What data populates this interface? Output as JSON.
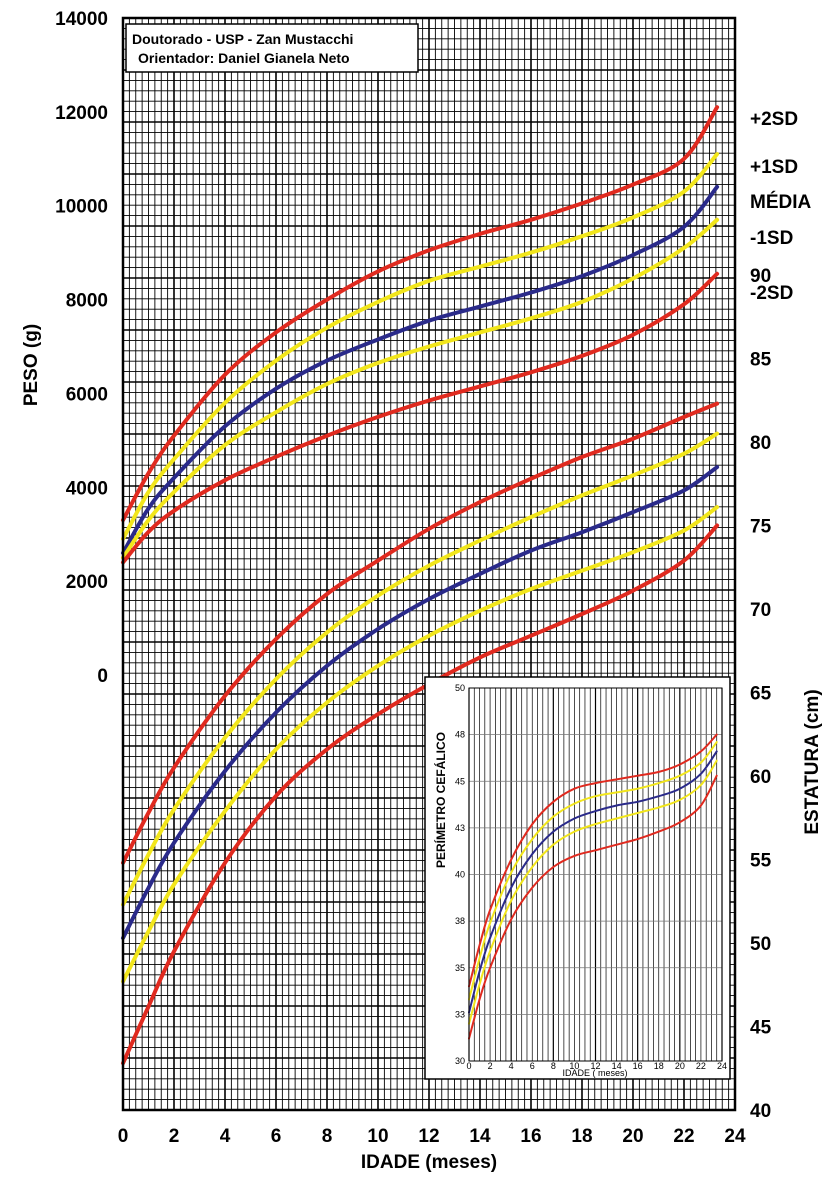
{
  "chart_data": [
    {
      "type": "line",
      "xlabel": "IDADE (meses)",
      "ylabel": "PESO (g)",
      "y2label": "ESTATURA (cm)",
      "credit_lines": [
        "Doutorado - USP - Zan Mustacchi",
        "Orientador: Daniel Gianela Neto"
      ],
      "xlim": [
        0,
        24
      ],
      "x_ticks": [
        0,
        2,
        4,
        6,
        8,
        10,
        12,
        14,
        16,
        18,
        20,
        22,
        24
      ],
      "y_ticks": [
        0,
        2000,
        4000,
        6000,
        8000,
        10000,
        12000,
        14000
      ],
      "ylim": [
        0,
        14000
      ],
      "y2_ticks": [
        40,
        45,
        50,
        55,
        60,
        65,
        70,
        75,
        80,
        85,
        90
      ],
      "y2lim": [
        40,
        100
      ],
      "grid": true,
      "colors": {
        "sd2": "#e02a1f",
        "sd1": "#f2e61b",
        "media": "#2a2a8a"
      },
      "x": [
        0,
        1,
        2,
        4,
        6,
        8,
        10,
        12,
        14,
        16,
        18,
        20,
        22,
        23.3
      ],
      "weight_series": [
        {
          "name": "+2SD",
          "color": "#e02a1f",
          "values": [
            3300,
            4300,
            5100,
            6400,
            7300,
            8000,
            8600,
            9050,
            9400,
            9700,
            10050,
            10450,
            11000,
            12100
          ]
        },
        {
          "name": "+1SD",
          "color": "#f2e61b",
          "values": [
            2900,
            3900,
            4600,
            5800,
            6700,
            7400,
            7950,
            8400,
            8700,
            9000,
            9350,
            9750,
            10300,
            11100
          ]
        },
        {
          "name": "MÉDIA",
          "color": "#2a2a8a",
          "values": [
            2600,
            3550,
            4200,
            5300,
            6100,
            6700,
            7150,
            7550,
            7850,
            8150,
            8500,
            8950,
            9550,
            10400
          ]
        },
        {
          "name": "-1SD",
          "color": "#f2e61b",
          "values": [
            2500,
            3300,
            3900,
            4900,
            5600,
            6200,
            6650,
            7000,
            7300,
            7600,
            7950,
            8450,
            9100,
            9700
          ]
        },
        {
          "name": "-2SD",
          "color": "#e02a1f",
          "values": [
            2400,
            3050,
            3500,
            4150,
            4650,
            5100,
            5500,
            5850,
            6150,
            6450,
            6800,
            7250,
            7900,
            8550
          ]
        }
      ],
      "height_series": [
        {
          "name": "+2SD",
          "color": "#e02a1f",
          "values": [
            54.8,
            57.8,
            60.5,
            64.8,
            68.2,
            70.9,
            72.9,
            74.8,
            76.4,
            77.8,
            79.1,
            80.2,
            81.5,
            82.3
          ]
        },
        {
          "name": "+1SD",
          "color": "#f2e61b",
          "values": [
            52.3,
            55.3,
            58.0,
            62.3,
            65.8,
            68.6,
            70.8,
            72.6,
            74.1,
            75.5,
            76.8,
            78.0,
            79.3,
            80.5
          ]
        },
        {
          "name": "MÉDIA",
          "color": "#2a2a8a",
          "values": [
            50.3,
            53.3,
            56.0,
            60.3,
            63.8,
            66.6,
            68.8,
            70.6,
            72.1,
            73.5,
            74.6,
            75.8,
            77.1,
            78.5
          ]
        },
        {
          "name": "-1SD",
          "color": "#f2e61b",
          "values": [
            47.7,
            50.7,
            53.5,
            57.9,
            61.6,
            64.4,
            66.6,
            68.4,
            69.9,
            71.2,
            72.3,
            73.4,
            74.7,
            76.1
          ]
        },
        {
          "name": "-2SD",
          "color": "#e02a1f",
          "values": [
            42.8,
            46.2,
            49.5,
            54.8,
            58.8,
            61.6,
            63.7,
            65.5,
            67.1,
            68.4,
            69.7,
            71.1,
            72.9,
            75.0
          ]
        }
      ],
      "sd_labels": [
        "+2SD",
        "+1SD",
        "MÉDIA",
        "-1SD",
        "-2SD"
      ]
    },
    {
      "type": "line",
      "xlabel": "IDADE ( meses)",
      "ylabel": "PERÍMETRO CEFÁLICO",
      "xlim": [
        0,
        24
      ],
      "ylim": [
        30,
        50
      ],
      "x_ticks": [
        0,
        2,
        4,
        6,
        8,
        10,
        12,
        14,
        16,
        18,
        20,
        22,
        24
      ],
      "y_ticks": [
        "30",
        "33",
        "35",
        "38",
        "40",
        "43",
        "45",
        "48",
        "50"
      ],
      "grid": true,
      "x": [
        0,
        1,
        2,
        4,
        6,
        8,
        10,
        12,
        14,
        16,
        18,
        20,
        22,
        23.5
      ],
      "series": [
        {
          "name": "+2SD",
          "color": "#e02a1f",
          "values": [
            34.0,
            36.2,
            38.1,
            40.8,
            42.7,
            43.9,
            44.6,
            44.9,
            45.1,
            45.3,
            45.5,
            45.9,
            46.6,
            47.5
          ]
        },
        {
          "name": "+1SD",
          "color": "#f2e61b",
          "values": [
            33.3,
            35.5,
            37.4,
            40.1,
            41.9,
            43.1,
            43.8,
            44.2,
            44.4,
            44.6,
            44.9,
            45.3,
            46.0,
            47.1
          ]
        },
        {
          "name": "MÉDIA",
          "color": "#2a2a8a",
          "values": [
            32.6,
            34.8,
            36.6,
            39.3,
            41.1,
            42.3,
            43.0,
            43.4,
            43.7,
            43.9,
            44.2,
            44.6,
            45.4,
            46.6
          ]
        },
        {
          "name": "-1SD",
          "color": "#f2e61b",
          "values": [
            32.0,
            34.1,
            35.9,
            38.6,
            40.4,
            41.6,
            42.3,
            42.7,
            43.0,
            43.3,
            43.6,
            44.0,
            44.8,
            46.1
          ]
        },
        {
          "name": "-2SD",
          "color": "#e02a1f",
          "values": [
            31.2,
            33.3,
            35.0,
            37.6,
            39.3,
            40.4,
            41.0,
            41.3,
            41.6,
            41.9,
            42.3,
            42.8,
            43.7,
            45.3
          ]
        }
      ]
    }
  ]
}
